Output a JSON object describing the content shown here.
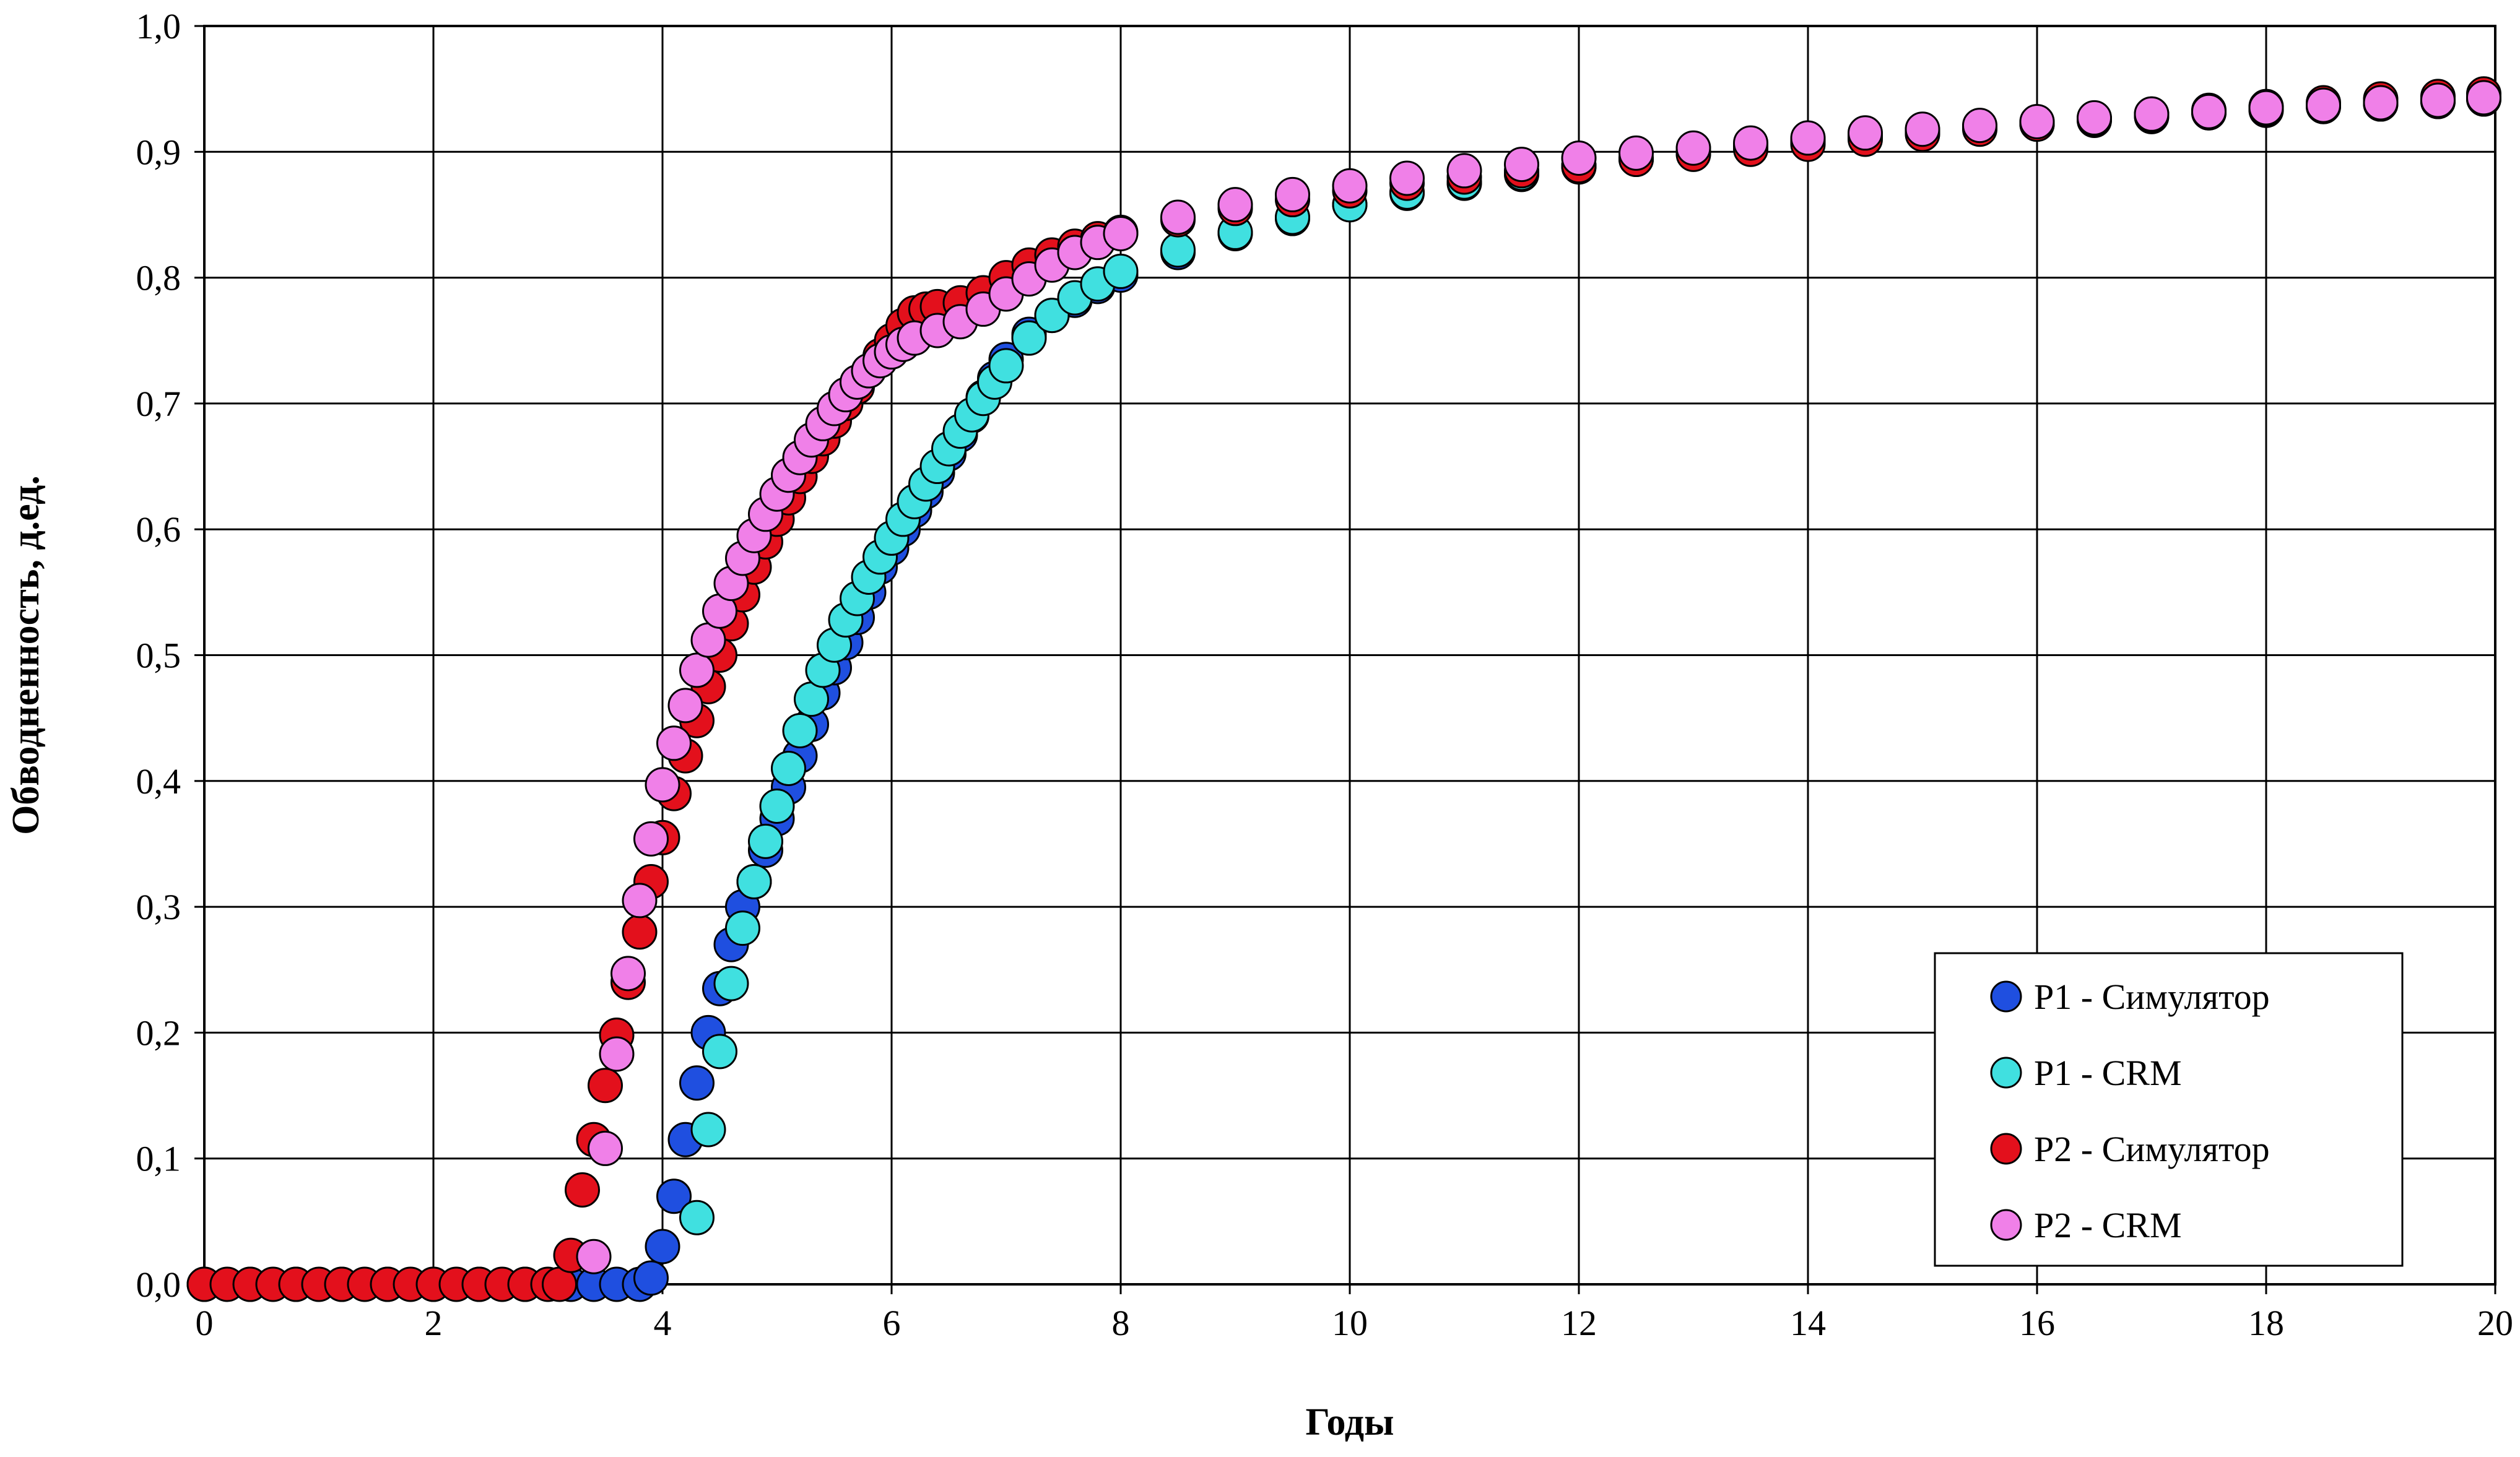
{
  "chart_data": {
    "type": "scatter",
    "title": "",
    "xlabel": "Годы",
    "ylabel": "Обводненность, д.ед.",
    "xlim": [
      0,
      20
    ],
    "ylim": [
      0,
      1
    ],
    "x_ticks": [
      "0",
      "2",
      "4",
      "6",
      "8",
      "10",
      "12",
      "14",
      "16",
      "18",
      "20"
    ],
    "y_ticks": [
      "0,0",
      "0,1",
      "0,2",
      "0,3",
      "0,4",
      "0,5",
      "0,6",
      "0,7",
      "0,8",
      "0,9",
      "1,0"
    ],
    "grid": true,
    "legend_position": "bottom-right",
    "series": [
      {
        "name": "P1 - Симулятор",
        "color": "#1f4fe0",
        "points": [
          [
            0.0,
            0.0
          ],
          [
            0.4,
            0.0
          ],
          [
            0.8,
            0.0
          ],
          [
            1.2,
            0.0
          ],
          [
            1.6,
            0.0
          ],
          [
            2.0,
            0.0
          ],
          [
            2.4,
            0.0
          ],
          [
            2.8,
            0.0
          ],
          [
            3.2,
            0.0
          ],
          [
            3.4,
            0.0
          ],
          [
            3.6,
            0.0
          ],
          [
            3.8,
            0.0
          ],
          [
            3.9,
            0.005
          ],
          [
            4.0,
            0.03
          ],
          [
            4.1,
            0.07
          ],
          [
            4.2,
            0.115
          ],
          [
            4.3,
            0.16
          ],
          [
            4.4,
            0.2
          ],
          [
            4.5,
            0.235
          ],
          [
            4.6,
            0.27
          ],
          [
            4.7,
            0.3
          ],
          [
            4.8,
            0.32
          ],
          [
            4.9,
            0.345
          ],
          [
            5.0,
            0.37
          ],
          [
            5.1,
            0.395
          ],
          [
            5.2,
            0.42
          ],
          [
            5.3,
            0.445
          ],
          [
            5.4,
            0.47
          ],
          [
            5.5,
            0.49
          ],
          [
            5.6,
            0.51
          ],
          [
            5.7,
            0.53
          ],
          [
            5.8,
            0.55
          ],
          [
            5.9,
            0.57
          ],
          [
            6.0,
            0.585
          ],
          [
            6.1,
            0.6
          ],
          [
            6.2,
            0.615
          ],
          [
            6.3,
            0.63
          ],
          [
            6.4,
            0.645
          ],
          [
            6.5,
            0.66
          ],
          [
            6.6,
            0.675
          ],
          [
            6.7,
            0.69
          ],
          [
            6.8,
            0.705
          ],
          [
            6.9,
            0.72
          ],
          [
            7.0,
            0.735
          ],
          [
            7.2,
            0.755
          ],
          [
            7.4,
            0.77
          ],
          [
            7.6,
            0.782
          ],
          [
            7.8,
            0.793
          ],
          [
            8.0,
            0.802
          ],
          [
            8.5,
            0.82
          ],
          [
            9.0,
            0.835
          ],
          [
            9.5,
            0.847
          ],
          [
            10.0,
            0.858
          ],
          [
            10.5,
            0.867
          ],
          [
            11.0,
            0.875
          ],
          [
            11.5,
            0.882
          ],
          [
            12.0,
            0.888
          ],
          [
            12.5,
            0.894
          ],
          [
            13.0,
            0.899
          ],
          [
            13.5,
            0.904
          ],
          [
            14.0,
            0.908
          ],
          [
            14.5,
            0.912
          ],
          [
            15.0,
            0.916
          ],
          [
            15.5,
            0.919
          ],
          [
            16.0,
            0.922
          ],
          [
            16.5,
            0.925
          ],
          [
            17.0,
            0.928
          ],
          [
            17.5,
            0.931
          ],
          [
            18.0,
            0.933
          ],
          [
            18.5,
            0.936
          ],
          [
            19.0,
            0.938
          ],
          [
            19.5,
            0.94
          ],
          [
            19.9,
            0.942
          ]
        ]
      },
      {
        "name": "P1 - CRM",
        "color": "#40e0e0",
        "points": [
          [
            4.3,
            0.053
          ],
          [
            4.4,
            0.123
          ],
          [
            4.5,
            0.185
          ],
          [
            4.6,
            0.239
          ],
          [
            4.7,
            0.283
          ],
          [
            4.8,
            0.32
          ],
          [
            4.9,
            0.352
          ],
          [
            5.0,
            0.38
          ],
          [
            5.1,
            0.41
          ],
          [
            5.2,
            0.44
          ],
          [
            5.3,
            0.465
          ],
          [
            5.4,
            0.488
          ],
          [
            5.5,
            0.508
          ],
          [
            5.6,
            0.528
          ],
          [
            5.7,
            0.545
          ],
          [
            5.8,
            0.562
          ],
          [
            5.9,
            0.578
          ],
          [
            6.0,
            0.593
          ],
          [
            6.1,
            0.608
          ],
          [
            6.2,
            0.622
          ],
          [
            6.3,
            0.636
          ],
          [
            6.4,
            0.65
          ],
          [
            6.5,
            0.664
          ],
          [
            6.6,
            0.678
          ],
          [
            6.7,
            0.691
          ],
          [
            6.8,
            0.704
          ],
          [
            6.9,
            0.717
          ],
          [
            7.0,
            0.73
          ],
          [
            7.2,
            0.752
          ],
          [
            7.4,
            0.77
          ],
          [
            7.6,
            0.784
          ],
          [
            7.8,
            0.795
          ],
          [
            8.0,
            0.805
          ],
          [
            8.5,
            0.822
          ],
          [
            9.0,
            0.836
          ],
          [
            9.5,
            0.848
          ],
          [
            10.0,
            0.858
          ],
          [
            10.5,
            0.868
          ],
          [
            11.0,
            0.876
          ],
          [
            11.5,
            0.883
          ],
          [
            12.0,
            0.889
          ],
          [
            12.5,
            0.895
          ],
          [
            13.0,
            0.9
          ],
          [
            13.5,
            0.905
          ],
          [
            14.0,
            0.909
          ],
          [
            14.5,
            0.913
          ],
          [
            15.0,
            0.917
          ],
          [
            15.5,
            0.92
          ],
          [
            16.0,
            0.923
          ],
          [
            16.5,
            0.926
          ],
          [
            17.0,
            0.929
          ],
          [
            17.5,
            0.931
          ],
          [
            18.0,
            0.934
          ],
          [
            18.5,
            0.936
          ],
          [
            19.0,
            0.938
          ],
          [
            19.5,
            0.94
          ],
          [
            19.9,
            0.942
          ]
        ]
      },
      {
        "name": "P2 - Симулятор",
        "color": "#e3101c",
        "points": [
          [
            0.0,
            0.0
          ],
          [
            0.2,
            0.0
          ],
          [
            0.4,
            0.0
          ],
          [
            0.6,
            0.0
          ],
          [
            0.8,
            0.0
          ],
          [
            1.0,
            0.0
          ],
          [
            1.2,
            0.0
          ],
          [
            1.4,
            0.0
          ],
          [
            1.6,
            0.0
          ],
          [
            1.8,
            0.0
          ],
          [
            2.0,
            0.0
          ],
          [
            2.2,
            0.0
          ],
          [
            2.4,
            0.0
          ],
          [
            2.6,
            0.0
          ],
          [
            2.8,
            0.0
          ],
          [
            3.0,
            0.0
          ],
          [
            3.1,
            0.0
          ],
          [
            3.2,
            0.023
          ],
          [
            3.3,
            0.075
          ],
          [
            3.4,
            0.115
          ],
          [
            3.5,
            0.158
          ],
          [
            3.6,
            0.198
          ],
          [
            3.7,
            0.24
          ],
          [
            3.8,
            0.28
          ],
          [
            3.9,
            0.32
          ],
          [
            4.0,
            0.355
          ],
          [
            4.1,
            0.39
          ],
          [
            4.2,
            0.42
          ],
          [
            4.3,
            0.448
          ],
          [
            4.4,
            0.475
          ],
          [
            4.5,
            0.5
          ],
          [
            4.6,
            0.525
          ],
          [
            4.7,
            0.548
          ],
          [
            4.8,
            0.57
          ],
          [
            4.9,
            0.59
          ],
          [
            5.0,
            0.608
          ],
          [
            5.1,
            0.625
          ],
          [
            5.2,
            0.642
          ],
          [
            5.3,
            0.658
          ],
          [
            5.4,
            0.672
          ],
          [
            5.5,
            0.686
          ],
          [
            5.6,
            0.7
          ],
          [
            5.7,
            0.713
          ],
          [
            5.8,
            0.726
          ],
          [
            5.9,
            0.738
          ],
          [
            6.0,
            0.75
          ],
          [
            6.1,
            0.762
          ],
          [
            6.2,
            0.772
          ],
          [
            6.3,
            0.775
          ],
          [
            6.4,
            0.777
          ],
          [
            6.6,
            0.78
          ],
          [
            6.8,
            0.788
          ],
          [
            7.0,
            0.8
          ],
          [
            7.2,
            0.81
          ],
          [
            7.4,
            0.818
          ],
          [
            7.6,
            0.825
          ],
          [
            7.8,
            0.831
          ],
          [
            8.0,
            0.836
          ],
          [
            8.5,
            0.846
          ],
          [
            9.0,
            0.855
          ],
          [
            9.5,
            0.862
          ],
          [
            10.0,
            0.869
          ],
          [
            10.5,
            0.875
          ],
          [
            11.0,
            0.88
          ],
          [
            11.5,
            0.885
          ],
          [
            12.0,
            0.889
          ],
          [
            12.5,
            0.894
          ],
          [
            13.0,
            0.898
          ],
          [
            13.5,
            0.902
          ],
          [
            14.0,
            0.906
          ],
          [
            14.5,
            0.91
          ],
          [
            15.0,
            0.914
          ],
          [
            15.5,
            0.918
          ],
          [
            16.0,
            0.922
          ],
          [
            16.5,
            0.926
          ],
          [
            17.0,
            0.93
          ],
          [
            17.5,
            0.933
          ],
          [
            18.0,
            0.936
          ],
          [
            18.5,
            0.939
          ],
          [
            19.0,
            0.942
          ],
          [
            19.5,
            0.944
          ],
          [
            19.9,
            0.946
          ]
        ]
      },
      {
        "name": "P2 - CRM",
        "color": "#f080e8",
        "points": [
          [
            3.4,
            0.022
          ],
          [
            3.5,
            0.108
          ],
          [
            3.6,
            0.183
          ],
          [
            3.7,
            0.247
          ],
          [
            3.8,
            0.305
          ],
          [
            3.9,
            0.354
          ],
          [
            4.0,
            0.397
          ],
          [
            4.1,
            0.43
          ],
          [
            4.2,
            0.46
          ],
          [
            4.3,
            0.488
          ],
          [
            4.4,
            0.512
          ],
          [
            4.5,
            0.535
          ],
          [
            4.6,
            0.557
          ],
          [
            4.7,
            0.577
          ],
          [
            4.8,
            0.595
          ],
          [
            4.9,
            0.612
          ],
          [
            5.0,
            0.628
          ],
          [
            5.1,
            0.643
          ],
          [
            5.2,
            0.657
          ],
          [
            5.3,
            0.671
          ],
          [
            5.4,
            0.684
          ],
          [
            5.5,
            0.696
          ],
          [
            5.6,
            0.707
          ],
          [
            5.7,
            0.717
          ],
          [
            5.8,
            0.726
          ],
          [
            5.9,
            0.734
          ],
          [
            6.0,
            0.741
          ],
          [
            6.1,
            0.747
          ],
          [
            6.2,
            0.752
          ],
          [
            6.4,
            0.758
          ],
          [
            6.6,
            0.765
          ],
          [
            6.8,
            0.775
          ],
          [
            7.0,
            0.787
          ],
          [
            7.2,
            0.799
          ],
          [
            7.4,
            0.81
          ],
          [
            7.6,
            0.82
          ],
          [
            7.8,
            0.828
          ],
          [
            8.0,
            0.835
          ],
          [
            8.5,
            0.848
          ],
          [
            9.0,
            0.858
          ],
          [
            9.5,
            0.866
          ],
          [
            10.0,
            0.873
          ],
          [
            10.5,
            0.879
          ],
          [
            11.0,
            0.885
          ],
          [
            11.5,
            0.89
          ],
          [
            12.0,
            0.895
          ],
          [
            12.5,
            0.899
          ],
          [
            13.0,
            0.903
          ],
          [
            13.5,
            0.907
          ],
          [
            14.0,
            0.911
          ],
          [
            14.5,
            0.915
          ],
          [
            15.0,
            0.918
          ],
          [
            15.5,
            0.921
          ],
          [
            16.0,
            0.924
          ],
          [
            16.5,
            0.927
          ],
          [
            17.0,
            0.93
          ],
          [
            17.5,
            0.932
          ],
          [
            18.0,
            0.935
          ],
          [
            18.5,
            0.937
          ],
          [
            19.0,
            0.939
          ],
          [
            19.5,
            0.941
          ],
          [
            19.9,
            0.943
          ]
        ]
      }
    ]
  }
}
